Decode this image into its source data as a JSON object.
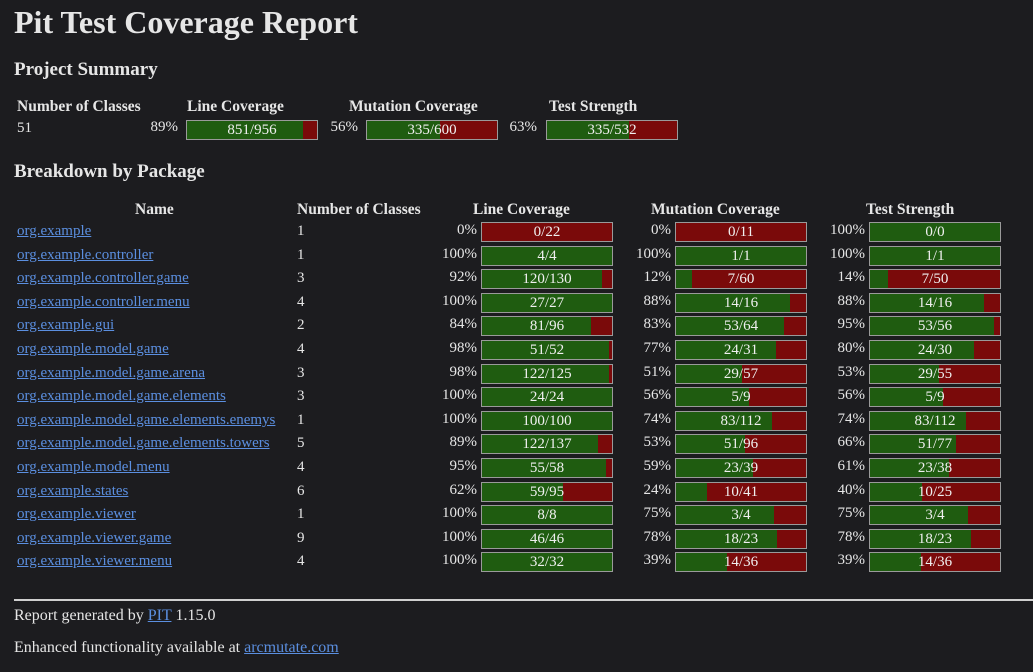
{
  "title": "Pit Test Coverage Report",
  "summary": {
    "heading": "Project Summary",
    "headers": {
      "classes": "Number of Classes",
      "line": "Line Coverage",
      "mutation": "Mutation Coverage",
      "strength": "Test Strength"
    },
    "classes": "51",
    "line": {
      "pct": "89%",
      "text": "851/956",
      "fraction": 0.89
    },
    "mutation": {
      "pct": "56%",
      "text": "335/600",
      "fraction": 0.56
    },
    "strength": {
      "pct": "63%",
      "text": "335/532",
      "fraction": 0.63
    }
  },
  "breakdown": {
    "heading": "Breakdown by Package",
    "headers": {
      "name": "Name",
      "classes": "Number of Classes",
      "line": "Line Coverage",
      "mutation": "Mutation Coverage",
      "strength": "Test Strength"
    },
    "rows": [
      {
        "name": "org.example",
        "classes": "1",
        "line_pct": "0%",
        "line_text": "0/22",
        "line_frac": 0.0,
        "mut_pct": "0%",
        "mut_text": "0/11",
        "mut_frac": 0.0,
        "str_pct": "100%",
        "str_text": "0/0",
        "str_frac": 1.0
      },
      {
        "name": "org.example.controller",
        "classes": "1",
        "line_pct": "100%",
        "line_text": "4/4",
        "line_frac": 1.0,
        "mut_pct": "100%",
        "mut_text": "1/1",
        "mut_frac": 1.0,
        "str_pct": "100%",
        "str_text": "1/1",
        "str_frac": 1.0
      },
      {
        "name": "org.example.controller.game",
        "classes": "3",
        "line_pct": "92%",
        "line_text": "120/130",
        "line_frac": 0.92,
        "mut_pct": "12%",
        "mut_text": "7/60",
        "mut_frac": 0.12,
        "str_pct": "14%",
        "str_text": "7/50",
        "str_frac": 0.14
      },
      {
        "name": "org.example.controller.menu",
        "classes": "4",
        "line_pct": "100%",
        "line_text": "27/27",
        "line_frac": 1.0,
        "mut_pct": "88%",
        "mut_text": "14/16",
        "mut_frac": 0.88,
        "str_pct": "88%",
        "str_text": "14/16",
        "str_frac": 0.88
      },
      {
        "name": "org.example.gui",
        "classes": "2",
        "line_pct": "84%",
        "line_text": "81/96",
        "line_frac": 0.84,
        "mut_pct": "83%",
        "mut_text": "53/64",
        "mut_frac": 0.83,
        "str_pct": "95%",
        "str_text": "53/56",
        "str_frac": 0.95
      },
      {
        "name": "org.example.model.game",
        "classes": "4",
        "line_pct": "98%",
        "line_text": "51/52",
        "line_frac": 0.98,
        "mut_pct": "77%",
        "mut_text": "24/31",
        "mut_frac": 0.77,
        "str_pct": "80%",
        "str_text": "24/30",
        "str_frac": 0.8
      },
      {
        "name": "org.example.model.game.arena",
        "classes": "3",
        "line_pct": "98%",
        "line_text": "122/125",
        "line_frac": 0.98,
        "mut_pct": "51%",
        "mut_text": "29/57",
        "mut_frac": 0.51,
        "str_pct": "53%",
        "str_text": "29/55",
        "str_frac": 0.53
      },
      {
        "name": "org.example.model.game.elements",
        "classes": "3",
        "line_pct": "100%",
        "line_text": "24/24",
        "line_frac": 1.0,
        "mut_pct": "56%",
        "mut_text": "5/9",
        "mut_frac": 0.56,
        "str_pct": "56%",
        "str_text": "5/9",
        "str_frac": 0.56
      },
      {
        "name": "org.example.model.game.elements.enemys",
        "classes": "1",
        "line_pct": "100%",
        "line_text": "100/100",
        "line_frac": 1.0,
        "mut_pct": "74%",
        "mut_text": "83/112",
        "mut_frac": 0.74,
        "str_pct": "74%",
        "str_text": "83/112",
        "str_frac": 0.74
      },
      {
        "name": "org.example.model.game.elements.towers",
        "classes": "5",
        "line_pct": "89%",
        "line_text": "122/137",
        "line_frac": 0.89,
        "mut_pct": "53%",
        "mut_text": "51/96",
        "mut_frac": 0.53,
        "str_pct": "66%",
        "str_text": "51/77",
        "str_frac": 0.66
      },
      {
        "name": "org.example.model.menu",
        "classes": "4",
        "line_pct": "95%",
        "line_text": "55/58",
        "line_frac": 0.95,
        "mut_pct": "59%",
        "mut_text": "23/39",
        "mut_frac": 0.59,
        "str_pct": "61%",
        "str_text": "23/38",
        "str_frac": 0.61
      },
      {
        "name": "org.example.states",
        "classes": "6",
        "line_pct": "62%",
        "line_text": "59/95",
        "line_frac": 0.62,
        "mut_pct": "24%",
        "mut_text": "10/41",
        "mut_frac": 0.24,
        "str_pct": "40%",
        "str_text": "10/25",
        "str_frac": 0.4
      },
      {
        "name": "org.example.viewer",
        "classes": "1",
        "line_pct": "100%",
        "line_text": "8/8",
        "line_frac": 1.0,
        "mut_pct": "75%",
        "mut_text": "3/4",
        "mut_frac": 0.75,
        "str_pct": "75%",
        "str_text": "3/4",
        "str_frac": 0.75
      },
      {
        "name": "org.example.viewer.game",
        "classes": "9",
        "line_pct": "100%",
        "line_text": "46/46",
        "line_frac": 1.0,
        "mut_pct": "78%",
        "mut_text": "18/23",
        "mut_frac": 0.78,
        "str_pct": "78%",
        "str_text": "18/23",
        "str_frac": 0.78
      },
      {
        "name": "org.example.viewer.menu",
        "classes": "4",
        "line_pct": "100%",
        "line_text": "32/32",
        "line_frac": 1.0,
        "mut_pct": "39%",
        "mut_text": "14/36",
        "mut_frac": 0.39,
        "str_pct": "39%",
        "str_text": "14/36",
        "str_frac": 0.39
      }
    ]
  },
  "footer": {
    "generated_prefix": "Report generated by",
    "pit_link": "PIT",
    "version": "1.15.0",
    "enhanced_prefix": "Enhanced functionality available at",
    "arc_link": "arcmutate.com"
  },
  "colors": {
    "background": "#1c1c1f",
    "covered": "#1f5c10",
    "uncovered": "#7a0a0a",
    "link": "#5b8fe0"
  }
}
